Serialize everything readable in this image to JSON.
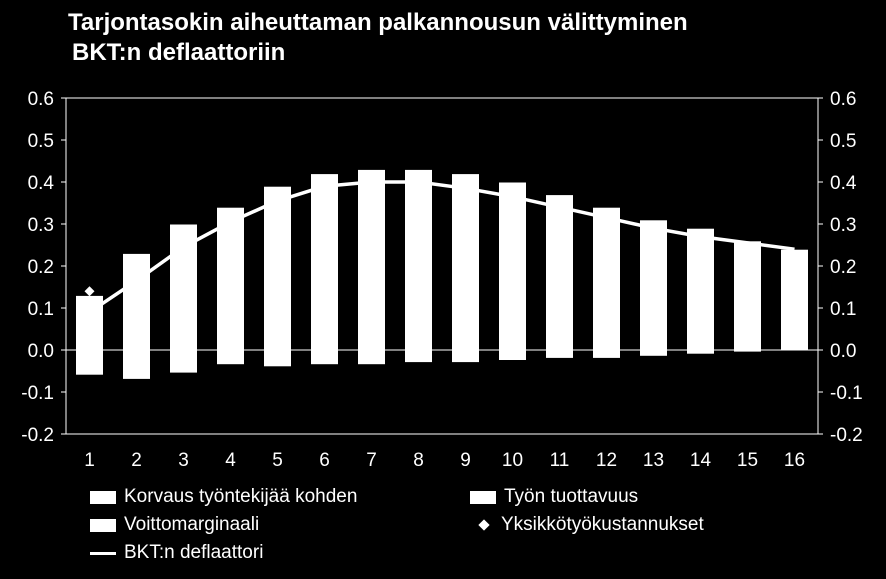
{
  "chart_data": {
    "type": "bar",
    "title": [
      "Tarjontasokin aiheuttaman palkannousun välittyminen",
      "BKT:n deflaattoriin"
    ],
    "categories": [
      "1",
      "2",
      "3",
      "4",
      "5",
      "6",
      "7",
      "8",
      "9",
      "10",
      "11",
      "12",
      "13",
      "14",
      "15",
      "16"
    ],
    "ylim": [
      -0.2,
      0.6
    ],
    "yticks": [
      "0.6",
      "0.5",
      "0.4",
      "0.3",
      "0.2",
      "0.1",
      "0.0",
      "-0.1",
      "-0.2"
    ],
    "ytick_values": [
      0.6,
      0.5,
      0.4,
      0.3,
      0.2,
      0.1,
      0.0,
      -0.1,
      -0.2
    ],
    "grid": false,
    "legend_position": "bottom",
    "series": [
      {
        "name": "Korvaus työntekijää kohden",
        "type": "bar",
        "values": [
          0.13,
          0.23,
          0.3,
          0.34,
          0.39,
          0.42,
          0.43,
          0.43,
          0.42,
          0.4,
          0.37,
          0.34,
          0.31,
          0.29,
          0.26,
          0.24
        ]
      },
      {
        "name": "Työn tuottavuus",
        "type": "bar",
        "values": [
          -0.06,
          -0.07,
          -0.055,
          -0.035,
          -0.04,
          -0.035,
          -0.035,
          -0.03,
          -0.03,
          -0.025,
          -0.02,
          -0.02,
          -0.015,
          -0.01,
          -0.005,
          0.0
        ]
      },
      {
        "name": "Voittomarginaali",
        "type": "bar",
        "values": [
          0,
          0,
          0,
          0,
          0,
          0,
          0,
          0,
          0,
          0,
          0,
          0,
          0,
          0,
          0,
          0
        ]
      },
      {
        "name": "Yksikkötyökustannukset",
        "type": "marker",
        "values": [
          0.14,
          null,
          null,
          null,
          null,
          null,
          null,
          null,
          null,
          null,
          null,
          null,
          null,
          null,
          null,
          null
        ]
      },
      {
        "name": "BKT:n deflaattori",
        "type": "line",
        "values": [
          0.09,
          0.165,
          0.245,
          0.305,
          0.355,
          0.39,
          0.4,
          0.4,
          0.385,
          0.365,
          0.34,
          0.315,
          0.29,
          0.27,
          0.255,
          0.24
        ]
      }
    ]
  },
  "legend": [
    {
      "label": "Korvaus työntekijää kohden",
      "icon": "bar"
    },
    {
      "label": "Työn tuottavuus",
      "icon": "bar"
    },
    {
      "label": "Voittomarginaali",
      "icon": "bar"
    },
    {
      "label": "Yksikkötyökustannukset",
      "icon": "diamond"
    },
    {
      "label": "BKT:n deflaattori",
      "icon": "line"
    }
  ],
  "colors": {
    "background": "#000000",
    "foreground": "#ffffff"
  }
}
